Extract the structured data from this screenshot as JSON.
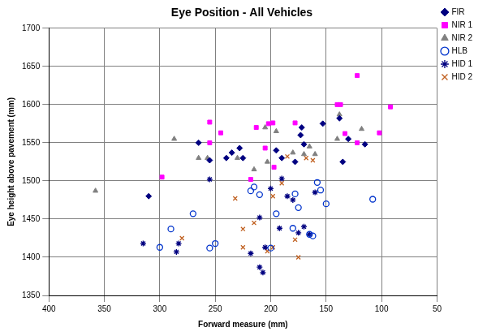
{
  "chart_data": {
    "type": "scatter",
    "title": "Eye Position - All Vehicles",
    "x_label": "Forward measure (mm)",
    "y_label": "Eye height above pavement (mm)",
    "xlim": [
      400,
      50
    ],
    "xticks": [
      400,
      350,
      300,
      250,
      200,
      150,
      100,
      50
    ],
    "ylim": [
      1350,
      1700
    ],
    "yticks": [
      1350,
      1400,
      1450,
      1500,
      1550,
      1600,
      1650,
      1700
    ],
    "grid": true,
    "legend": "top right",
    "series": [
      {
        "name": "FIR",
        "color": "#000080",
        "marker": "diamond",
        "x": [
          310,
          265,
          255,
          240,
          235,
          228,
          225,
          195,
          190,
          178,
          173,
          172,
          170,
          153,
          138,
          135,
          130,
          115
        ],
        "values": [
          1480,
          1550,
          1527,
          1530,
          1537,
          1543,
          1530,
          1540,
          1530,
          1525,
          1560,
          1570,
          1548,
          1575,
          1582,
          1525,
          1555,
          1548
        ]
      },
      {
        "name": "NIR 1",
        "color": "#ff00ff",
        "marker": "square",
        "x": [
          298,
          255,
          255,
          245,
          218,
          213,
          205,
          202,
          198,
          197,
          178,
          140,
          137,
          133,
          122,
          122,
          102,
          92
        ],
        "values": [
          1505,
          1577,
          1550,
          1563,
          1502,
          1570,
          1543,
          1575,
          1576,
          1518,
          1576,
          1600,
          1600,
          1562,
          1550,
          1638,
          1563,
          1597
        ]
      },
      {
        "name": "NIR 2",
        "color": "#808080",
        "marker": "triangle",
        "x": [
          358,
          287,
          265,
          257,
          230,
          215,
          205,
          203,
          195,
          180,
          170,
          165,
          160,
          140,
          138,
          118
        ],
        "values": [
          1487,
          1555,
          1530,
          1530,
          1530,
          1515,
          1570,
          1525,
          1565,
          1537,
          1535,
          1545,
          1535,
          1555,
          1587,
          1568
        ]
      },
      {
        "name": "HLB",
        "color": "#0033cc",
        "marker": "open_circle",
        "x": [
          300,
          290,
          270,
          255,
          250,
          218,
          215,
          210,
          200,
          195,
          180,
          178,
          175,
          165,
          162,
          158,
          155,
          150,
          108
        ],
        "values": [
          1413,
          1437,
          1457,
          1412,
          1418,
          1487,
          1492,
          1482,
          1412,
          1457,
          1438,
          1483,
          1465,
          1430,
          1428,
          1498,
          1488,
          1470,
          1476
        ]
      },
      {
        "name": "HID 1",
        "color": "#000080",
        "marker": "star",
        "x": [
          315,
          285,
          283,
          255,
          218,
          210,
          207,
          210,
          205,
          200,
          192,
          190,
          185,
          180,
          175,
          170,
          165,
          160
        ],
        "values": [
          1418,
          1407,
          1418,
          1502,
          1405,
          1387,
          1380,
          1452,
          1413,
          1490,
          1438,
          1503,
          1480,
          1475,
          1432,
          1440,
          1430,
          1485
        ]
      },
      {
        "name": "HID 2",
        "color": "#c06020",
        "marker": "x",
        "x": [
          280,
          232,
          225,
          225,
          215,
          203,
          198,
          198,
          190,
          185,
          178,
          175,
          168,
          162
        ],
        "values": [
          1425,
          1477,
          1437,
          1413,
          1445,
          1408,
          1413,
          1480,
          1497,
          1532,
          1423,
          1400,
          1530,
          1527
        ]
      }
    ]
  }
}
